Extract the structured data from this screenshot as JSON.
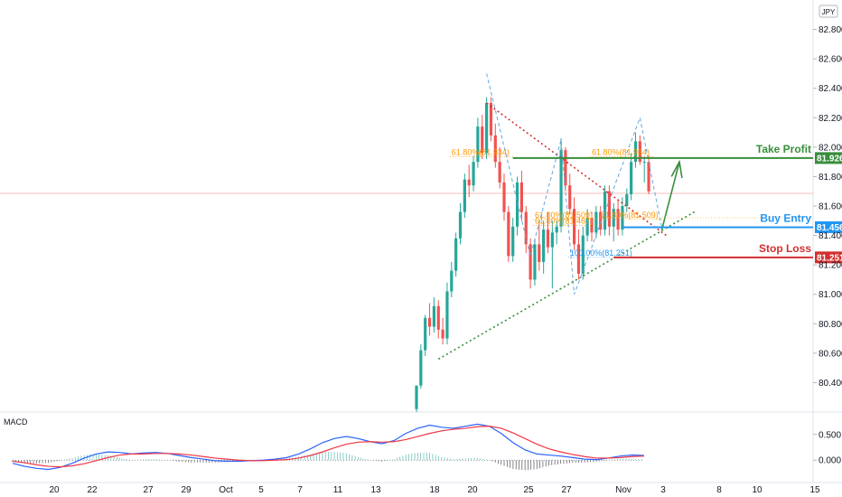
{
  "symbol_badge": "JPY",
  "chart_data": {
    "type": "candlestick",
    "price_axis": {
      "ticks": [
        "82.800",
        "82.600",
        "82.400",
        "82.200",
        "82.000",
        "81.800",
        "81.600",
        "81.400",
        "81.200",
        "81.000",
        "80.800",
        "80.600",
        "80.400"
      ],
      "ylim": [
        80.2,
        83.0
      ]
    },
    "time_axis": {
      "ticks": [
        "20",
        "22",
        "27",
        "29",
        "Oct",
        "5",
        "7",
        "11",
        "13",
        "18",
        "20",
        "25",
        "27",
        "Nov",
        "3",
        "8",
        "10",
        "15"
      ]
    },
    "candles": [
      {
        "o": 80.22,
        "h": 80.38,
        "l": 80.2,
        "c": 80.38
      },
      {
        "o": 80.38,
        "h": 80.66,
        "l": 80.36,
        "c": 80.62
      },
      {
        "o": 80.62,
        "h": 80.86,
        "l": 80.58,
        "c": 80.84
      },
      {
        "o": 80.84,
        "h": 80.94,
        "l": 80.72,
        "c": 80.78
      },
      {
        "o": 80.78,
        "h": 80.98,
        "l": 80.74,
        "c": 80.92
      },
      {
        "o": 80.92,
        "h": 80.96,
        "l": 80.7,
        "c": 80.76
      },
      {
        "o": 80.76,
        "h": 80.84,
        "l": 80.66,
        "c": 80.7
      },
      {
        "o": 80.7,
        "h": 81.08,
        "l": 80.66,
        "c": 81.02
      },
      {
        "o": 81.02,
        "h": 81.22,
        "l": 80.98,
        "c": 81.16
      },
      {
        "o": 81.16,
        "h": 81.42,
        "l": 81.12,
        "c": 81.38
      },
      {
        "o": 81.38,
        "h": 81.62,
        "l": 81.34,
        "c": 81.56
      },
      {
        "o": 81.56,
        "h": 81.82,
        "l": 81.52,
        "c": 81.78
      },
      {
        "o": 81.78,
        "h": 81.88,
        "l": 81.66,
        "c": 81.74
      },
      {
        "o": 81.74,
        "h": 81.94,
        "l": 81.7,
        "c": 81.9
      },
      {
        "o": 81.9,
        "h": 82.2,
        "l": 81.86,
        "c": 82.14
      },
      {
        "o": 82.14,
        "h": 82.22,
        "l": 81.92,
        "c": 81.96
      },
      {
        "o": 81.96,
        "h": 82.34,
        "l": 81.92,
        "c": 82.3
      },
      {
        "o": 82.3,
        "h": 82.34,
        "l": 82.04,
        "c": 82.08
      },
      {
        "o": 82.08,
        "h": 82.16,
        "l": 81.86,
        "c": 81.9
      },
      {
        "o": 81.9,
        "h": 82.0,
        "l": 81.72,
        "c": 81.76
      },
      {
        "o": 81.76,
        "h": 81.82,
        "l": 81.5,
        "c": 81.56
      },
      {
        "o": 81.56,
        "h": 81.6,
        "l": 81.22,
        "c": 81.26
      },
      {
        "o": 81.26,
        "h": 81.52,
        "l": 81.22,
        "c": 81.46
      },
      {
        "o": 81.46,
        "h": 81.8,
        "l": 81.4,
        "c": 81.76
      },
      {
        "o": 81.76,
        "h": 81.84,
        "l": 81.5,
        "c": 81.56
      },
      {
        "o": 81.56,
        "h": 81.6,
        "l": 81.28,
        "c": 81.34
      },
      {
        "o": 81.34,
        "h": 81.38,
        "l": 81.04,
        "c": 81.1
      },
      {
        "o": 81.1,
        "h": 81.38,
        "l": 81.06,
        "c": 81.34
      },
      {
        "o": 81.34,
        "h": 81.48,
        "l": 81.16,
        "c": 81.22
      },
      {
        "o": 81.22,
        "h": 81.5,
        "l": 81.14,
        "c": 81.44
      },
      {
        "o": 81.44,
        "h": 81.56,
        "l": 81.28,
        "c": 81.32
      },
      {
        "o": 81.32,
        "h": 81.5,
        "l": 81.04,
        "c": 81.42
      },
      {
        "o": 81.42,
        "h": 81.5,
        "l": 81.34,
        "c": 81.46
      },
      {
        "o": 81.46,
        "h": 82.06,
        "l": 81.42,
        "c": 81.98
      },
      {
        "o": 81.98,
        "h": 82.0,
        "l": 81.7,
        "c": 81.74
      },
      {
        "o": 81.74,
        "h": 81.82,
        "l": 81.54,
        "c": 81.58
      },
      {
        "o": 81.58,
        "h": 81.66,
        "l": 81.3,
        "c": 81.34
      },
      {
        "o": 81.34,
        "h": 81.44,
        "l": 81.1,
        "c": 81.14
      },
      {
        "o": 81.14,
        "h": 81.46,
        "l": 81.1,
        "c": 81.4
      },
      {
        "o": 81.4,
        "h": 81.58,
        "l": 81.36,
        "c": 81.52
      },
      {
        "o": 81.52,
        "h": 81.56,
        "l": 81.36,
        "c": 81.42
      },
      {
        "o": 81.42,
        "h": 81.6,
        "l": 81.38,
        "c": 81.56
      },
      {
        "o": 81.56,
        "h": 81.6,
        "l": 81.4,
        "c": 81.44
      },
      {
        "o": 81.44,
        "h": 81.74,
        "l": 81.4,
        "c": 81.7
      },
      {
        "o": 81.7,
        "h": 81.74,
        "l": 81.4,
        "c": 81.46
      },
      {
        "o": 81.46,
        "h": 81.62,
        "l": 81.36,
        "c": 81.58
      },
      {
        "o": 81.58,
        "h": 81.64,
        "l": 81.4,
        "c": 81.44
      },
      {
        "o": 81.44,
        "h": 81.66,
        "l": 81.4,
        "c": 81.6
      },
      {
        "o": 81.6,
        "h": 81.72,
        "l": 81.56,
        "c": 81.68
      },
      {
        "o": 81.68,
        "h": 81.96,
        "l": 81.64,
        "c": 81.9
      },
      {
        "o": 81.9,
        "h": 82.1,
        "l": 81.86,
        "c": 82.04
      },
      {
        "o": 82.04,
        "h": 82.08,
        "l": 81.88,
        "c": 81.9
      },
      {
        "o": 81.9,
        "h": 81.94,
        "l": 81.76,
        "c": 81.9
      },
      {
        "o": 81.9,
        "h": 81.94,
        "l": 81.68,
        "c": 81.7
      }
    ],
    "levels": [
      {
        "name": "Take Profit",
        "price": 81.926,
        "label": "81.926",
        "color": "#388e3c"
      },
      {
        "name": "Buy Entry",
        "price": 81.456,
        "label": "81.456",
        "color": "#2196f3"
      },
      {
        "name": "Stop Loss",
        "price": 81.251,
        "label": "81.251",
        "color": "#d32f2f"
      }
    ],
    "fib_labels": [
      {
        "text": "61.80%(81.934)",
        "color": "#ff9800"
      },
      {
        "text": "61.80%(81.934)",
        "color": "#ff9800"
      },
      {
        "text": "61.80%(81.509)",
        "color": "#ff9800"
      },
      {
        "text": "61.80%(81.467)",
        "color": "#ff9800"
      },
      {
        "text": "61.80%(81.509)",
        "color": "#ff9800"
      },
      {
        "text": "100.00%(81.251)",
        "color": "#2196f3"
      }
    ],
    "macd": {
      "title": "MACD",
      "ticks": [
        "0.500",
        "0.000"
      ],
      "ylim": [
        -0.4,
        0.9
      ],
      "macd_line": [
        -0.06,
        -0.12,
        -0.16,
        -0.18,
        -0.14,
        -0.06,
        0.04,
        0.12,
        0.16,
        0.15,
        0.12,
        0.14,
        0.15,
        0.13,
        0.09,
        0.05,
        0.02,
        -0.01,
        -0.02,
        -0.02,
        -0.01,
        0.0,
        0.02,
        0.05,
        0.12,
        0.22,
        0.34,
        0.42,
        0.46,
        0.42,
        0.36,
        0.32,
        0.38,
        0.52,
        0.62,
        0.68,
        0.64,
        0.62,
        0.66,
        0.7,
        0.66,
        0.52,
        0.34,
        0.2,
        0.12,
        0.1,
        0.08,
        0.05,
        0.02,
        0.01,
        0.04,
        0.08,
        0.1,
        0.09
      ],
      "signal_line": [
        -0.02,
        -0.05,
        -0.09,
        -0.12,
        -0.13,
        -0.11,
        -0.07,
        -0.01,
        0.05,
        0.1,
        0.12,
        0.12,
        0.13,
        0.13,
        0.12,
        0.1,
        0.07,
        0.04,
        0.02,
        0.0,
        -0.01,
        -0.01,
        0.0,
        0.01,
        0.04,
        0.09,
        0.16,
        0.24,
        0.31,
        0.35,
        0.36,
        0.35,
        0.36,
        0.4,
        0.46,
        0.52,
        0.57,
        0.6,
        0.62,
        0.65,
        0.66,
        0.62,
        0.53,
        0.42,
        0.31,
        0.22,
        0.16,
        0.11,
        0.07,
        0.04,
        0.04,
        0.05,
        0.07,
        0.08
      ]
    }
  }
}
